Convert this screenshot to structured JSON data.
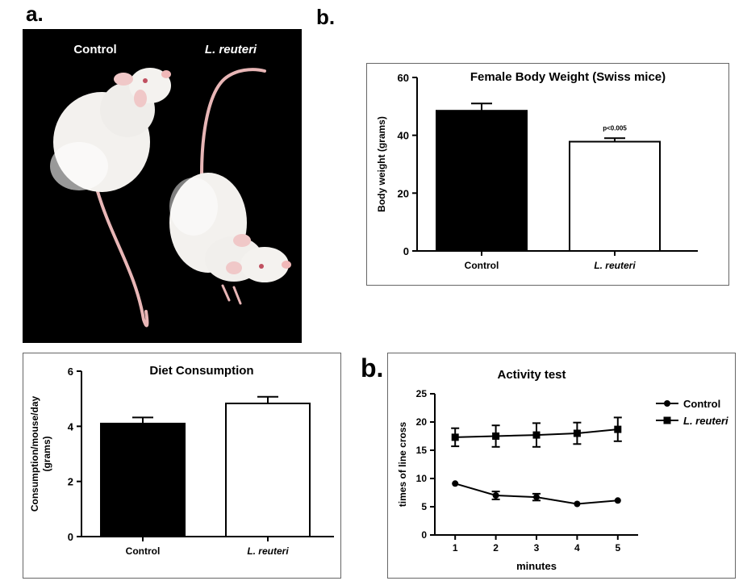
{
  "panel_labels": {
    "a": "a.",
    "b_top": "b.",
    "b_bottom": "b."
  },
  "photo": {
    "label_control": "Control",
    "label_reuteri": "L. reuteri"
  },
  "chart_data": [
    {
      "id": "body-weight",
      "type": "bar",
      "title": "Female Body Weight (Swiss mice)",
      "xlabel": "",
      "ylabel": "Body weight (grams)",
      "categories": [
        "Control",
        "L. reuteri"
      ],
      "values": [
        48.5,
        37.8
      ],
      "errors": [
        2.5,
        1.2
      ],
      "bar_colors": [
        "#000000",
        "#ffffff"
      ],
      "ylim": [
        0,
        60
      ],
      "yticks": [
        0,
        20,
        40,
        60
      ],
      "annotation": "p<0.005",
      "annotation_category": "L. reuteri"
    },
    {
      "id": "diet-consumption",
      "type": "bar",
      "title": "Diet Consumption",
      "xlabel": "",
      "ylabel": "Consumption/mouse/day (grams)",
      "ylabel_lines": [
        "Consumption/mouse/day",
        "(grams)"
      ],
      "categories": [
        "Control",
        "L. reuteri"
      ],
      "values": [
        4.1,
        4.83
      ],
      "errors": [
        0.22,
        0.24
      ],
      "bar_colors": [
        "#000000",
        "#ffffff"
      ],
      "ylim": [
        0,
        6
      ],
      "yticks": [
        0,
        2,
        4,
        6
      ]
    },
    {
      "id": "activity-test",
      "type": "line",
      "title": "Activity test",
      "xlabel": "minutes",
      "ylabel": "times of line cross",
      "x": [
        1,
        2,
        3,
        4,
        5
      ],
      "xlim": [
        0.5,
        5.5
      ],
      "ylim": [
        0,
        25
      ],
      "yticks": [
        0,
        5,
        10,
        15,
        20,
        25
      ],
      "legend": "right",
      "series": [
        {
          "name": "Control",
          "marker": "circle",
          "values": [
            9.1,
            7.0,
            6.7,
            5.5,
            6.1
          ],
          "errors": [
            0,
            0.7,
            0.6,
            0,
            0
          ]
        },
        {
          "name": "L. reuteri",
          "marker": "square",
          "values": [
            17.3,
            17.5,
            17.7,
            18.0,
            18.7
          ],
          "errors": [
            1.6,
            1.9,
            2.1,
            1.9,
            2.1
          ]
        }
      ]
    }
  ]
}
